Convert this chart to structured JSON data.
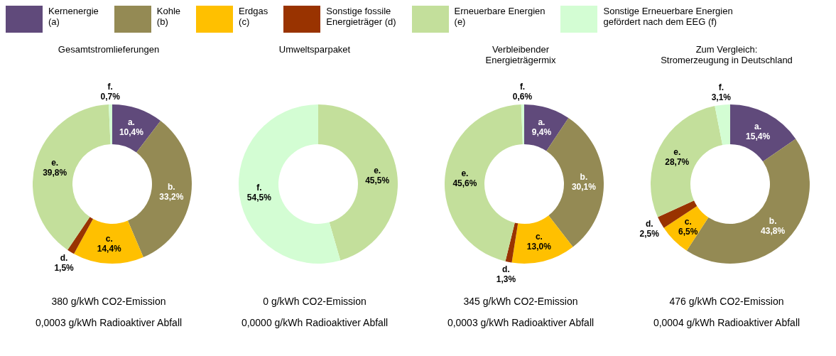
{
  "chart_data": [
    {
      "type": "other",
      "annotations": [
        "Kernenergie\n(a)",
        "Kohle\n(b)",
        "Erdgas\n(c)",
        "Sonstige fossile\nEnergieträger (d)",
        "Erneuerbare Energien\n(e)",
        "Sonstige Erneuerbare Energien\ngefördert nach dem EEG (f)"
      ],
      "colors": [
        "#604a7b",
        "#948a54",
        "#ffc000",
        "#993300",
        "#c3df9b",
        "#d3fdd3"
      ]
    },
    {
      "type": "donut",
      "title": "Gesamtstromlieferungen",
      "categories": [
        "a.",
        "b.",
        "c.",
        "d.",
        "e.",
        "f."
      ],
      "values": [
        10.4,
        33.2,
        14.4,
        1.5,
        39.8,
        0.7
      ],
      "colors": [
        "#604a7b",
        "#948a54",
        "#ffc000",
        "#993300",
        "#c3df9b",
        "#d3fdd3"
      ],
      "value_labels": [
        "10,4%",
        "33,2%",
        "14,4%",
        "1,5%",
        "39,8%",
        "0,7%"
      ],
      "annotations": [
        "380 g/kWh CO2-Emission",
        "0,0003 g/kWh Radioaktiver Abfall"
      ]
    },
    {
      "type": "donut",
      "title": "Umweltsparpaket",
      "categories": [
        "e.",
        "f."
      ],
      "values": [
        45.5,
        54.5
      ],
      "colors": [
        "#c3df9b",
        "#d3fdd3"
      ],
      "value_labels": [
        "45,5%",
        "54,5%"
      ],
      "annotations": [
        "0 g/kWh CO2-Emission",
        "0,0000 g/kWh Radioaktiver Abfall"
      ]
    },
    {
      "type": "donut",
      "title": "Verbleibender\nEnergieträgermix",
      "categories": [
        "a.",
        "b.",
        "c.",
        "d.",
        "e.",
        "f."
      ],
      "values": [
        9.4,
        30.1,
        13.0,
        1.3,
        45.6,
        0.6
      ],
      "colors": [
        "#604a7b",
        "#948a54",
        "#ffc000",
        "#993300",
        "#c3df9b",
        "#d3fdd3"
      ],
      "value_labels": [
        "9,4%",
        "30,1%",
        "13,0%",
        "1,3%",
        "45,6%",
        "0,6%"
      ],
      "annotations": [
        "345 g/kWh CO2-Emission",
        "0,0003 g/kWh Radioaktiver Abfall"
      ]
    },
    {
      "type": "donut",
      "title": "Zum Vergleich:\nStromerzeugung in Deutschland",
      "categories": [
        "a.",
        "b.",
        "c.",
        "d.",
        "e.",
        "f."
      ],
      "values": [
        15.4,
        43.8,
        6.5,
        2.5,
        28.7,
        3.1
      ],
      "colors": [
        "#604a7b",
        "#948a54",
        "#ffc000",
        "#993300",
        "#c3df9b",
        "#d3fdd3"
      ],
      "value_labels": [
        "15,4%",
        "43,8%",
        "6,5%",
        "2,5%",
        "28,7%",
        "3,1%"
      ],
      "annotations": [
        "476 g/kWh CO2-Emission",
        "0,0004 g/kWh Radioaktiver Abfall"
      ]
    }
  ]
}
